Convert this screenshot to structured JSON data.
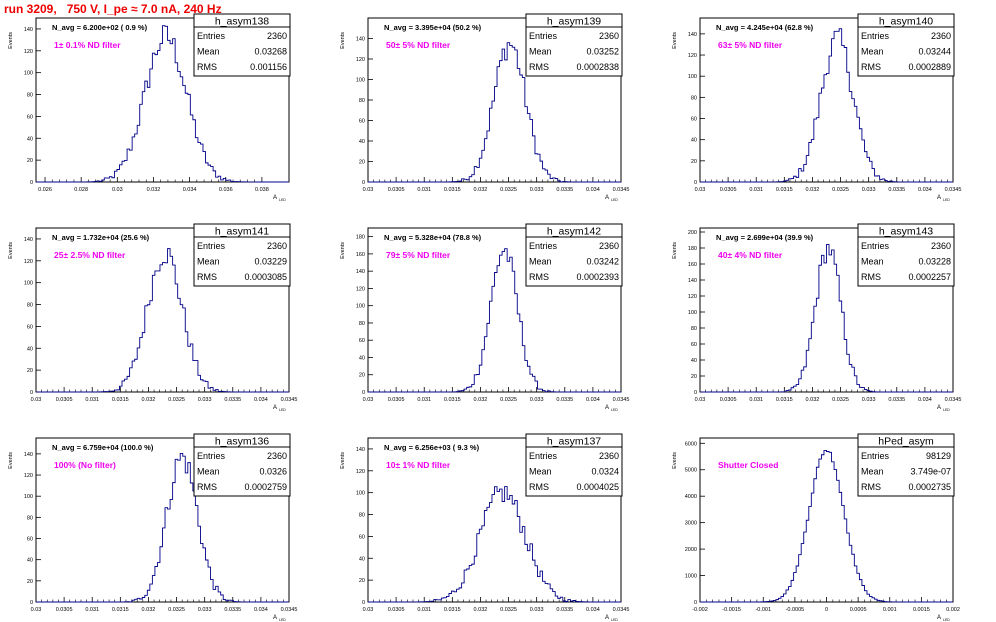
{
  "run_title": "run 3209,   750 V, I_pe ≈ 7.0 nA, 240 Hz",
  "colors": {
    "histogram": "#000088",
    "annotation": "#ee00ee",
    "title": "#ee0000"
  },
  "stats_labels": {
    "entries": "Entries",
    "mean": "Mean",
    "rms": "RMS"
  },
  "xlabel": "A",
  "xlabel_sub": "LED",
  "ylabel": "Events",
  "chart_data": [
    {
      "type": "histogram",
      "name": "h_asym138",
      "navg": "N_avg = 6.200e+02 ( 0.9 %)",
      "note": "1± 0.1% ND filter",
      "entries": "2360",
      "mean": "0.03268",
      "rms": "0.001156",
      "xlim": [
        0.0255,
        0.0395
      ],
      "xticks": [
        0.026,
        0.028,
        0.03,
        0.032,
        0.034,
        0.036,
        0.038
      ],
      "xtick_labels": [
        "0.026",
        "0.028",
        "0.03",
        "0.032",
        "0.034",
        "0.036",
        "0.038"
      ],
      "ylim": [
        0,
        150
      ],
      "yticks": [
        0,
        20,
        40,
        60,
        80,
        100,
        120,
        140
      ],
      "ytick_labels": [
        "0",
        "20",
        "40",
        "60",
        "80",
        "100",
        "120",
        "140"
      ],
      "gauss": {
        "mu": 0.03268,
        "sigma": 0.001156,
        "peak": 133
      }
    },
    {
      "type": "histogram",
      "name": "h_asym139",
      "navg": "N_avg = 3.395e+04 (50.2 %)",
      "note": "50± 5% ND filter",
      "entries": "2360",
      "mean": "0.03252",
      "rms": "0.0002838",
      "xlim": [
        0.03,
        0.0345
      ],
      "xticks": [
        0.03,
        0.0305,
        0.031,
        0.0315,
        0.032,
        0.0325,
        0.033,
        0.0335,
        0.034,
        0.0345
      ],
      "xtick_labels": [
        "0.03",
        "0.0305",
        "0.031",
        "0.0315",
        "0.032",
        "0.0325",
        "0.033",
        "0.0335",
        "0.034",
        "0.0345"
      ],
      "ylim": [
        0,
        160
      ],
      "yticks": [
        0,
        20,
        40,
        60,
        80,
        100,
        120,
        140
      ],
      "ytick_labels": [
        "0",
        "20",
        "40",
        "60",
        "80",
        "100",
        "120",
        "140"
      ],
      "gauss": {
        "mu": 0.03252,
        "sigma": 0.0002838,
        "peak": 135
      }
    },
    {
      "type": "histogram",
      "name": "h_asym140",
      "navg": "N_avg = 4.245e+04 (62.8 %)",
      "note": "63± 5% ND filter",
      "entries": "2360",
      "mean": "0.03244",
      "rms": "0.0002889",
      "xlim": [
        0.03,
        0.0345
      ],
      "xticks": [
        0.03,
        0.0305,
        0.031,
        0.0315,
        0.032,
        0.0325,
        0.033,
        0.0335,
        0.034,
        0.0345
      ],
      "xtick_labels": [
        "0.03",
        "0.0305",
        "0.031",
        "0.0315",
        "0.032",
        "0.0325",
        "0.033",
        "0.0335",
        "0.034",
        "0.0345"
      ],
      "ylim": [
        0,
        155
      ],
      "yticks": [
        0,
        20,
        40,
        60,
        80,
        100,
        120,
        140
      ],
      "ytick_labels": [
        "0",
        "20",
        "40",
        "60",
        "80",
        "100",
        "120",
        "140"
      ],
      "gauss": {
        "mu": 0.03244,
        "sigma": 0.0002889,
        "peak": 135
      }
    },
    {
      "type": "histogram",
      "name": "h_asym141",
      "navg": "N_avg = 1.732e+04 (25.6 %)",
      "note": "25± 2.5% ND filter",
      "entries": "2360",
      "mean": "0.03229",
      "rms": "0.0003085",
      "xlim": [
        0.03,
        0.0345
      ],
      "xticks": [
        0.03,
        0.0305,
        0.031,
        0.0315,
        0.032,
        0.0325,
        0.033,
        0.0335,
        0.034,
        0.0345
      ],
      "xtick_labels": [
        "0.03",
        "0.0305",
        "0.031",
        "0.0315",
        "0.032",
        "0.0325",
        "0.033",
        "0.0335",
        "0.034",
        "0.0345"
      ],
      "ylim": [
        0,
        150
      ],
      "yticks": [
        0,
        20,
        40,
        60,
        80,
        100,
        120,
        140
      ],
      "ytick_labels": [
        "0",
        "20",
        "40",
        "60",
        "80",
        "100",
        "120",
        "140"
      ],
      "gauss": {
        "mu": 0.03229,
        "sigma": 0.0003085,
        "peak": 128
      }
    },
    {
      "type": "histogram",
      "name": "h_asym142",
      "navg": "N_avg = 5.328e+04 (78.8 %)",
      "note": "79± 5% ND filter",
      "entries": "2360",
      "mean": "0.03242",
      "rms": "0.0002393",
      "xlim": [
        0.03,
        0.0345
      ],
      "xticks": [
        0.03,
        0.0305,
        0.031,
        0.0315,
        0.032,
        0.0325,
        0.033,
        0.0335,
        0.034,
        0.0345
      ],
      "xtick_labels": [
        "0.03",
        "0.0305",
        "0.031",
        "0.0315",
        "0.032",
        "0.0325",
        "0.033",
        "0.0335",
        "0.034",
        "0.0345"
      ],
      "ylim": [
        0,
        190
      ],
      "yticks": [
        0,
        20,
        40,
        60,
        80,
        100,
        120,
        140,
        160,
        180
      ],
      "ytick_labels": [
        "0",
        "20",
        "40",
        "60",
        "80",
        "100",
        "120",
        "140",
        "160",
        "180"
      ],
      "gauss": {
        "mu": 0.03242,
        "sigma": 0.0002393,
        "peak": 165
      }
    },
    {
      "type": "histogram",
      "name": "h_asym143",
      "navg": "N_avg = 2.699e+04 (39.9 %)",
      "note": "40± 4% ND filter",
      "entries": "2360",
      "mean": "0.03228",
      "rms": "0.0002257",
      "xlim": [
        0.03,
        0.0345
      ],
      "xticks": [
        0.03,
        0.0305,
        0.031,
        0.0315,
        0.032,
        0.0325,
        0.033,
        0.0335,
        0.034,
        0.0345
      ],
      "xtick_labels": [
        "0.03",
        "0.0305",
        "0.031",
        "0.0315",
        "0.032",
        "0.0325",
        "0.033",
        "0.0335",
        "0.034",
        "0.0345"
      ],
      "ylim": [
        0,
        205
      ],
      "yticks": [
        0,
        20,
        40,
        60,
        80,
        100,
        120,
        140,
        160,
        180,
        200
      ],
      "ytick_labels": [
        "0",
        "20",
        "40",
        "60",
        "80",
        "100",
        "120",
        "140",
        "160",
        "180",
        "200"
      ],
      "gauss": {
        "mu": 0.03228,
        "sigma": 0.0002257,
        "peak": 180
      }
    },
    {
      "type": "histogram",
      "name": "h_asym136",
      "navg": "N_avg = 6.759e+04 (100.0 %)",
      "note": "100% (No filter)",
      "entries": "2360",
      "mean": "0.0326",
      "rms": "0.0002759",
      "xlim": [
        0.03,
        0.0345
      ],
      "xticks": [
        0.03,
        0.0305,
        0.031,
        0.0315,
        0.032,
        0.0325,
        0.033,
        0.0335,
        0.034,
        0.0345
      ],
      "xtick_labels": [
        "0.03",
        "0.0305",
        "0.031",
        "0.0315",
        "0.032",
        "0.0325",
        "0.033",
        "0.0335",
        "0.034",
        "0.0345"
      ],
      "ylim": [
        0,
        155
      ],
      "yticks": [
        0,
        20,
        40,
        60,
        80,
        100,
        120,
        140
      ],
      "ytick_labels": [
        "0",
        "20",
        "40",
        "60",
        "80",
        "100",
        "120",
        "140"
      ],
      "gauss": {
        "mu": 0.0326,
        "sigma": 0.0002759,
        "peak": 137
      }
    },
    {
      "type": "histogram",
      "name": "h_asym137",
      "navg": "N_avg = 6.256e+03 ( 9.3 %)",
      "note": "10± 1% ND filter",
      "entries": "2360",
      "mean": "0.0324",
      "rms": "0.0004025",
      "xlim": [
        0.03,
        0.0345
      ],
      "xticks": [
        0.03,
        0.0305,
        0.031,
        0.0315,
        0.032,
        0.0325,
        0.033,
        0.0335,
        0.034,
        0.0345
      ],
      "xtick_labels": [
        "0.03",
        "0.0305",
        "0.031",
        "0.0315",
        "0.032",
        "0.0325",
        "0.033",
        "0.0335",
        "0.034",
        "0.0345"
      ],
      "ylim": [
        0,
        150
      ],
      "yticks": [
        0,
        20,
        40,
        60,
        80,
        100,
        120,
        140
      ],
      "ytick_labels": [
        "0",
        "20",
        "40",
        "60",
        "80",
        "100",
        "120",
        "140"
      ],
      "gauss": {
        "mu": 0.0324,
        "sigma": 0.0004025,
        "peak": 100
      }
    },
    {
      "type": "histogram",
      "name": "hPed_asym",
      "navg": "",
      "note": "Shutter Closed",
      "entries": "98129",
      "mean": "3.749e-07",
      "rms": "0.0002735",
      "xlim": [
        -0.002,
        0.002
      ],
      "xticks": [
        -0.002,
        -0.0015,
        -0.001,
        -0.0005,
        0,
        0.0005,
        0.001,
        0.0015,
        0.002
      ],
      "xtick_labels": [
        "-0.002",
        "-0.0015",
        "-0.001",
        "-0.0005",
        "0",
        "0.0005",
        "0.001",
        "0.0015",
        "0.002"
      ],
      "ylim": [
        0,
        6200
      ],
      "yticks": [
        0,
        1000,
        2000,
        3000,
        4000,
        5000,
        6000
      ],
      "ytick_labels": [
        "0",
        "1000",
        "2000",
        "3000",
        "4000",
        "5000",
        "6000"
      ],
      "gauss": {
        "mu": 0.0,
        "sigma": 0.0002735,
        "peak": 5750
      }
    }
  ]
}
